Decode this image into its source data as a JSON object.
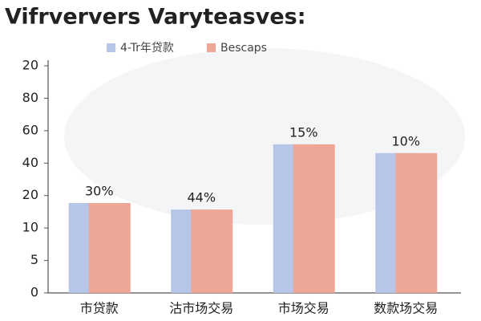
{
  "chart_data": {
    "type": "bar",
    "title": "Vifrververs Varyteasves:",
    "categories": [
      "市贷款",
      "沽市场交易",
      "市场交易",
      "数款场交易"
    ],
    "series": [
      {
        "name": "4-Tr年贷款",
        "color": "#b7c5e8",
        "values": [
          2.77,
          2.57,
          4.58,
          4.31
        ]
      },
      {
        "name": "Bescaps",
        "color": "#eea797",
        "values": [
          2.77,
          2.57,
          4.58,
          4.31
        ]
      }
    ],
    "annotations": [
      "30%",
      "44%",
      "15%",
      "10%"
    ],
    "ylim": [
      0,
      7
    ],
    "yticks": [
      {
        "value": 0,
        "label": "0"
      },
      {
        "value": 1,
        "label": "5"
      },
      {
        "value": 2,
        "label": "10"
      },
      {
        "value": 3,
        "label": "20"
      },
      {
        "value": 4,
        "label": "40"
      },
      {
        "value": 5,
        "label": "60"
      },
      {
        "value": 6,
        "label": "80"
      },
      {
        "value": 7,
        "label": "20"
      }
    ],
    "grid": false
  }
}
